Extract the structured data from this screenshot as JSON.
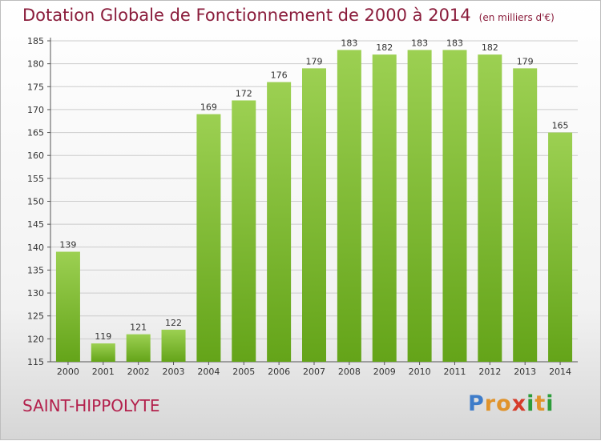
{
  "header": {
    "title": "Dotation Globale de Fonctionnement de 2000 à 2014",
    "subtitle": "(en milliers d'€)"
  },
  "footer": {
    "city": "SAINT-HIPPOLYTE",
    "logo": {
      "text": "Proxiti",
      "colors": [
        "#3e7cc9",
        "#e0932b",
        "#e0932b",
        "#d63b2a",
        "#2d9c3a",
        "#e0932b",
        "#2d9c3a"
      ]
    }
  },
  "colors": {
    "bar_top": "#9cd052",
    "bar_bottom": "#64a419",
    "title": "#8a1c3b",
    "city": "#b3204c",
    "grid": "#cccccc"
  },
  "chart_data": {
    "type": "bar",
    "title": "Dotation Globale de Fonctionnement de 2000 à 2014",
    "subtitle": "(en milliers d'€)",
    "categories": [
      "2000",
      "2001",
      "2002",
      "2003",
      "2004",
      "2005",
      "2006",
      "2007",
      "2008",
      "2009",
      "2010",
      "2011",
      "2012",
      "2013",
      "2014"
    ],
    "values": [
      139,
      119,
      121,
      122,
      169,
      172,
      176,
      179,
      183,
      182,
      183,
      183,
      182,
      179,
      165
    ],
    "ylim": [
      115,
      185
    ],
    "yticks": [
      115,
      120,
      125,
      130,
      135,
      140,
      145,
      150,
      155,
      160,
      165,
      170,
      175,
      180,
      185
    ],
    "grid": true,
    "data_labels": true
  }
}
